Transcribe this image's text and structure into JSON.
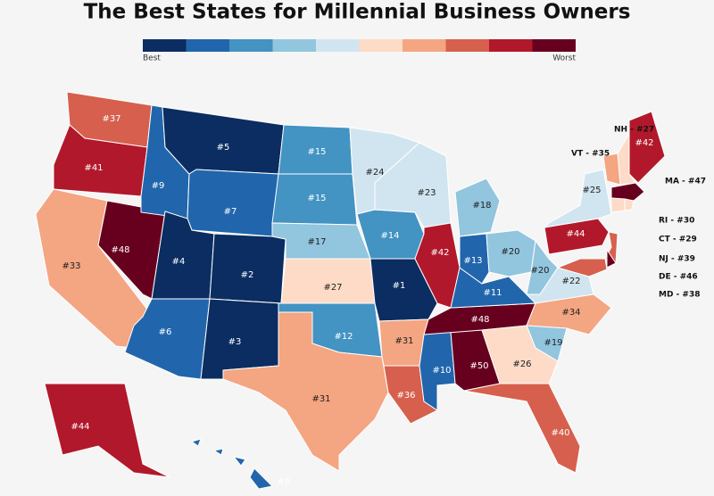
{
  "title": "The Best States for Millennial Business Owners",
  "legend": {
    "colors": [
      "#0b2d61",
      "#2166ac",
      "#4393c3",
      "#92c5de",
      "#d1e5f0",
      "#fddbc7",
      "#f4a582",
      "#d6604d",
      "#b2182b",
      "#67001f"
    ],
    "low": "Best",
    "high": "Worst"
  },
  "states": [
    {
      "label": "#37",
      "color": "#d6604d"
    },
    {
      "label": "#41",
      "color": "#b2182b"
    },
    {
      "label": "#33",
      "color": "#f4a582"
    },
    {
      "label": "#48",
      "color": "#67001f"
    },
    {
      "label": "#9",
      "color": "#2166ac"
    },
    {
      "label": "#5",
      "color": "#0b2d61"
    },
    {
      "label": "#7",
      "color": "#2166ac"
    },
    {
      "label": "#4",
      "color": "#0b2d61"
    },
    {
      "label": "#2",
      "color": "#0b2d61"
    },
    {
      "label": "#6",
      "color": "#2166ac"
    },
    {
      "label": "#3",
      "color": "#0b2d61"
    },
    {
      "label": "#15",
      "color": "#4393c3"
    },
    {
      "label": "#15",
      "color": "#4393c3"
    },
    {
      "label": "#17",
      "color": "#92c5de"
    },
    {
      "label": "#27",
      "color": "#fddbc7"
    },
    {
      "label": "#12",
      "color": "#4393c3"
    },
    {
      "label": "#31",
      "color": "#f4a582"
    },
    {
      "label": "#24",
      "color": "#d1e5f0"
    },
    {
      "label": "#14",
      "color": "#4393c3"
    },
    {
      "label": "#1",
      "color": "#0b2d61"
    },
    {
      "label": "#31",
      "color": "#f4a582"
    },
    {
      "label": "#36",
      "color": "#d6604d"
    },
    {
      "label": "#23",
      "color": "#d1e5f0"
    },
    {
      "label": "#42",
      "color": "#b2182b"
    },
    {
      "label": "#10",
      "color": "#2166ac"
    },
    {
      "label": "#50",
      "color": "#67001f"
    },
    {
      "label": "#48",
      "color": "#67001f"
    },
    {
      "label": "#11",
      "color": "#2166ac"
    },
    {
      "label": "#13",
      "color": "#2166ac"
    },
    {
      "label": "#18",
      "color": "#92c5de"
    },
    {
      "label": "#20",
      "color": "#92c5de"
    },
    {
      "label": "#20",
      "color": "#92c5de"
    },
    {
      "label": "#22",
      "color": "#d1e5f0"
    },
    {
      "label": "#34",
      "color": "#f4a582"
    },
    {
      "label": "#19",
      "color": "#92c5de"
    },
    {
      "label": "#26",
      "color": "#fddbc7"
    },
    {
      "label": "#40",
      "color": "#d6604d"
    },
    {
      "label": "#44",
      "color": "#b2182b"
    },
    {
      "label": "#25",
      "color": "#d1e5f0"
    },
    {
      "label": "#42",
      "color": "#b2182b"
    },
    {
      "label": "#44",
      "color": "#b2182b"
    },
    {
      "label": "#8",
      "color": "#2166ac"
    }
  ],
  "callouts": [
    {
      "text": "NH - #27",
      "color": "#fddbc7"
    },
    {
      "text": "VT - #35",
      "color": "#f4a582"
    },
    {
      "text": "MA - #47",
      "color": "#67001f"
    },
    {
      "text": "RI - #30",
      "color": "#fddbc7"
    },
    {
      "text": "CT - #29",
      "color": "#fddbc7"
    },
    {
      "text": "NJ - #39",
      "color": "#d6604d"
    },
    {
      "text": "DE - #46",
      "color": "#67001f"
    },
    {
      "text": "MD - #38",
      "color": "#d6604d"
    }
  ]
}
